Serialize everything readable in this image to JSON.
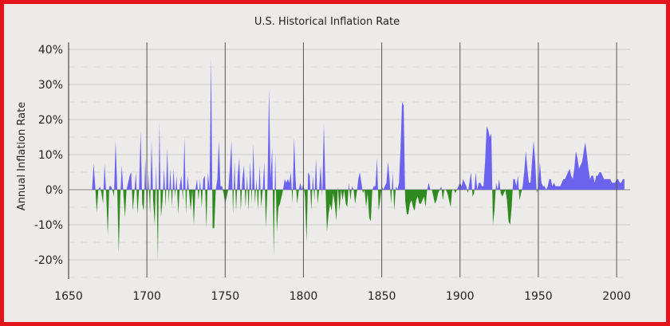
{
  "colors": {
    "positive": "#6b63ee",
    "negative": "#2f8a1f",
    "border": "#e3141c",
    "background": "#ecebe9"
  },
  "chart_data": {
    "type": "area",
    "title": "U.S. Historical Inflation Rate",
    "xlabel": "",
    "ylabel": "Annual Inflation Rate",
    "xlim": [
      1650,
      2010
    ],
    "ylim": [
      -25,
      42
    ],
    "x_ticks": [
      "1650",
      "1700",
      "1750",
      "1800",
      "1850",
      "1900",
      "1950",
      "2000"
    ],
    "y_ticks": [
      "40%",
      "30%",
      "20%",
      "10%",
      "0%",
      "-10%",
      "-20%"
    ],
    "grid": true,
    "legend": "none",
    "series": [
      {
        "x": [
          1665,
          1666,
          1667,
          1668,
          1669,
          1670,
          1671,
          1672,
          1673,
          1674,
          1675,
          1676,
          1677,
          1678,
          1679,
          1680,
          1681,
          1682,
          1683,
          1684,
          1685,
          1686,
          1687,
          1688,
          1689,
          1690,
          1691,
          1692,
          1693,
          1694,
          1695,
          1696,
          1697,
          1698,
          1699,
          1700,
          1701,
          1702,
          1703,
          1704,
          1705,
          1706,
          1707,
          1708,
          1709,
          1710,
          1711,
          1712,
          1713,
          1714,
          1715,
          1716,
          1717,
          1718,
          1719,
          1720,
          1721,
          1722,
          1723,
          1724,
          1725,
          1726,
          1727,
          1728,
          1729,
          1730,
          1731,
          1732,
          1733,
          1734,
          1735,
          1736,
          1737,
          1738,
          1739,
          1740,
          1741,
          1742,
          1743,
          1744,
          1745,
          1746,
          1747,
          1748,
          1749,
          1750,
          1751,
          1752,
          1753,
          1754,
          1755,
          1756,
          1757,
          1758,
          1759,
          1760,
          1761,
          1762,
          1763,
          1764,
          1765,
          1766,
          1767,
          1768,
          1769,
          1770,
          1771,
          1772,
          1773,
          1774,
          1775,
          1776,
          1777,
          1778,
          1779,
          1780,
          1781,
          1782,
          1783,
          1784,
          1785,
          1786,
          1787,
          1788,
          1789,
          1790,
          1791,
          1792,
          1793,
          1794,
          1795,
          1796,
          1797,
          1798,
          1799,
          1800,
          1801,
          1802,
          1803,
          1804,
          1805,
          1806,
          1807,
          1808,
          1809,
          1810,
          1811,
          1812,
          1813,
          1814,
          1815,
          1816,
          1817,
          1818,
          1819,
          1820,
          1821,
          1822,
          1823,
          1824,
          1825,
          1826,
          1827,
          1828,
          1829,
          1830,
          1831,
          1832,
          1833,
          1834,
          1835,
          1836,
          1837,
          1838,
          1839,
          1840,
          1841,
          1842,
          1843,
          1844,
          1845,
          1846,
          1847,
          1848,
          1849,
          1850,
          1851,
          1852,
          1853,
          1854,
          1855,
          1856,
          1857,
          1858,
          1859,
          1860,
          1861,
          1862,
          1863,
          1864,
          1865,
          1866,
          1867,
          1868,
          1869,
          1870,
          1871,
          1872,
          1873,
          1874,
          1875,
          1876,
          1877,
          1878,
          1879,
          1880,
          1881,
          1882,
          1883,
          1884,
          1885,
          1886,
          1887,
          1888,
          1889,
          1890,
          1891,
          1892,
          1893,
          1894,
          1895,
          1896,
          1897,
          1898,
          1899,
          1900,
          1901,
          1902,
          1903,
          1904,
          1905,
          1906,
          1907,
          1908,
          1909,
          1910,
          1911,
          1912,
          1913,
          1914,
          1915,
          1916,
          1917,
          1918,
          1919,
          1920,
          1921,
          1922,
          1923,
          1924,
          1925,
          1926,
          1927,
          1928,
          1929,
          1930,
          1931,
          1932,
          1933,
          1934,
          1935,
          1936,
          1937,
          1938,
          1939,
          1940,
          1941,
          1942,
          1943,
          1944,
          1945,
          1946,
          1947,
          1948,
          1949,
          1950,
          1951,
          1952,
          1953,
          1954,
          1955,
          1956,
          1957,
          1958,
          1959,
          1960,
          1961,
          1962,
          1963,
          1964,
          1965,
          1966,
          1967,
          1968,
          1969,
          1970,
          1971,
          1972,
          1973,
          1974,
          1975,
          1976,
          1977,
          1978,
          1979,
          1980,
          1981,
          1982,
          1983,
          1984,
          1985,
          1986,
          1987,
          1988,
          1989,
          1990,
          1991,
          1992,
          1993,
          1994,
          1995,
          1996,
          1997,
          1998,
          1999,
          2000,
          2001,
          2002,
          2003,
          2004,
          2005
        ],
        "y": [
          0,
          7.5,
          1,
          -6.5,
          0,
          1,
          -1,
          -4,
          7.5,
          -1,
          -13,
          1,
          1,
          0,
          -2,
          14,
          1,
          -18,
          -2,
          7,
          -1,
          -8,
          0,
          2,
          4,
          5,
          -6,
          -1,
          5,
          -7,
          0,
          17,
          -4,
          -6,
          9,
          -8,
          5,
          -7,
          14,
          -3,
          -10,
          7,
          -20,
          19.5,
          -8,
          -3,
          6,
          -5,
          12,
          -4,
          6,
          -5,
          6,
          -2,
          4,
          -7,
          1,
          4,
          -3,
          15,
          -7,
          4,
          -1,
          -6,
          0,
          -10,
          0,
          3,
          -3,
          3,
          -5,
          3,
          4,
          -11,
          5,
          0,
          38,
          -11,
          -11,
          0,
          3,
          14,
          1,
          1,
          -1,
          -4,
          -2,
          0,
          6,
          14,
          -7,
          8,
          -6,
          4,
          9,
          -6,
          3,
          7,
          -5,
          4,
          -6,
          8,
          -4,
          13,
          -4,
          3,
          -6,
          7,
          -5,
          0,
          8,
          -11,
          0,
          29,
          3,
          12,
          -19,
          10,
          -12,
          -5,
          -4,
          -2,
          0,
          3,
          2,
          3,
          2,
          5,
          -4,
          15,
          3,
          -4,
          0,
          2,
          0,
          2,
          -2,
          -15,
          5,
          4,
          -6,
          4,
          -3,
          9,
          -4,
          0,
          7,
          -2,
          19,
          2,
          -12,
          -7,
          -4,
          -6,
          -1,
          -4,
          -9,
          1,
          -6,
          0,
          -3,
          0,
          -4,
          -5,
          2,
          -3,
          1,
          0,
          -4,
          -1,
          3,
          5,
          2,
          -1,
          0,
          -5,
          -1,
          -8,
          -9,
          0,
          1,
          1,
          9,
          -6,
          -3,
          1,
          0,
          1,
          2,
          8,
          3,
          -4,
          5,
          -6,
          1,
          0,
          2,
          12,
          25,
          24,
          -3,
          -7,
          -7,
          -4,
          -3,
          -5,
          -6,
          -3,
          -2,
          -4,
          -4,
          -3,
          -2,
          -5,
          0,
          2,
          0,
          0,
          -2,
          -4,
          -3,
          -1,
          0,
          1,
          -3,
          0,
          0,
          -1,
          -3,
          -5,
          0,
          0,
          -1,
          0,
          1,
          2,
          1,
          3,
          2,
          1,
          -1,
          2,
          5,
          -2,
          -1,
          5,
          0,
          2,
          2,
          1,
          1,
          8,
          18,
          17,
          15,
          16,
          -10,
          -6,
          2,
          0,
          3,
          -1,
          -2,
          -1,
          0,
          -3,
          -9,
          -10,
          -5,
          3,
          3,
          1,
          4,
          -3,
          -1,
          1,
          5,
          11,
          6,
          2,
          2,
          8,
          14,
          8,
          -1,
          1,
          8,
          2,
          1,
          1,
          0,
          1,
          3,
          3,
          1,
          2,
          1,
          1,
          1,
          1,
          2,
          3,
          3,
          4,
          5,
          6,
          4,
          3,
          6,
          11,
          9,
          6,
          7,
          8,
          11,
          13.5,
          10,
          6,
          3,
          4,
          4,
          2,
          4,
          4,
          5,
          5,
          4,
          3,
          3,
          3,
          3,
          3,
          2,
          2,
          2,
          3,
          3,
          2,
          2,
          3,
          3
        ]
      }
    ]
  }
}
